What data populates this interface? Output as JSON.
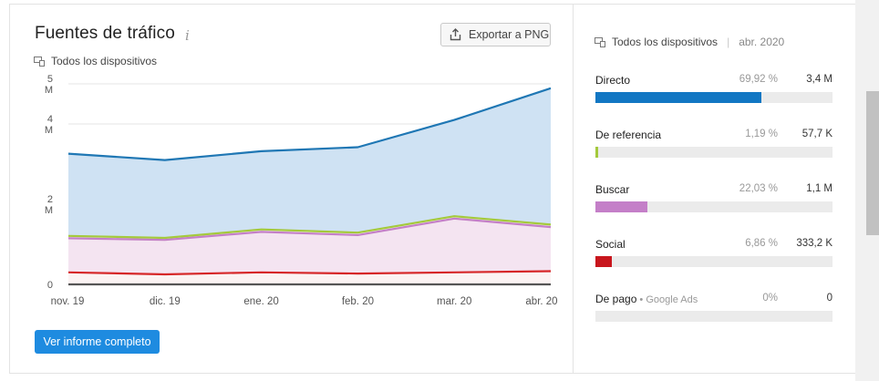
{
  "header": {
    "title": "Fuentes de tráfico",
    "info_glyph": "i",
    "export_label": "Exportar a PNG",
    "devices_label": "Todos los dispositivos"
  },
  "footer": {
    "report_button": "Ver informe completo"
  },
  "side_panel": {
    "devices_label": "Todos los dispositivos",
    "separator": "|",
    "date": "abr. 2020",
    "rows": [
      {
        "label": "Directo",
        "sublabel": "",
        "percent": "69,92 %",
        "value": "3,4 M",
        "share": 0.6992,
        "color": "#1277c3"
      },
      {
        "label": "De referencia",
        "sublabel": "",
        "percent": "1,19 %",
        "value": "57,7 K",
        "share": 0.0119,
        "color": "#a4c93c"
      },
      {
        "label": "Buscar",
        "sublabel": "",
        "percent": "22,03 %",
        "value": "1,1 M",
        "share": 0.2203,
        "color": "#c47fc8"
      },
      {
        "label": "Social",
        "sublabel": "",
        "percent": "6,86 %",
        "value": "333,2 K",
        "share": 0.0686,
        "color": "#c8161d"
      },
      {
        "label": "De pago",
        "sublabel": "Google Ads",
        "percent": "0%",
        "value": "0",
        "share": 0,
        "color": "#888888"
      }
    ]
  },
  "colors": {
    "directo_line": "#1f77b4",
    "directo_fill": "#cfe2f3",
    "referencia_line": "#a4c93c",
    "buscar_line": "#c47fc8",
    "buscar_fill": "#f4e4f1",
    "social_line": "#d62728",
    "pago_line": "#555555"
  },
  "chart_data": {
    "type": "area",
    "stacked": true,
    "x": [
      "nov. 19",
      "dic. 19",
      "ene. 20",
      "feb. 20",
      "mar. 20",
      "abr. 20"
    ],
    "y_ticks": [
      {
        "value": 0,
        "lines": [
          "0"
        ]
      },
      {
        "value": 2,
        "lines": [
          "2",
          "M"
        ]
      },
      {
        "value": 4,
        "lines": [
          "4",
          "M"
        ]
      },
      {
        "value": 5,
        "lines": [
          "5",
          "M"
        ]
      }
    ],
    "ylim": [
      0,
      5
    ],
    "grid": true,
    "series": [
      {
        "key": "pago",
        "values": [
          0,
          0,
          0,
          0,
          0,
          0
        ]
      },
      {
        "key": "social",
        "values": [
          0.3,
          0.25,
          0.3,
          0.27,
          0.3,
          0.33
        ]
      },
      {
        "key": "buscar",
        "values": [
          0.85,
          0.86,
          1.01,
          0.96,
          1.34,
          1.1
        ]
      },
      {
        "key": "referencia",
        "values": [
          0.06,
          0.05,
          0.06,
          0.06,
          0.06,
          0.06
        ]
      },
      {
        "key": "directo",
        "values": [
          2.05,
          1.94,
          1.95,
          2.13,
          2.4,
          3.4
        ]
      }
    ]
  }
}
